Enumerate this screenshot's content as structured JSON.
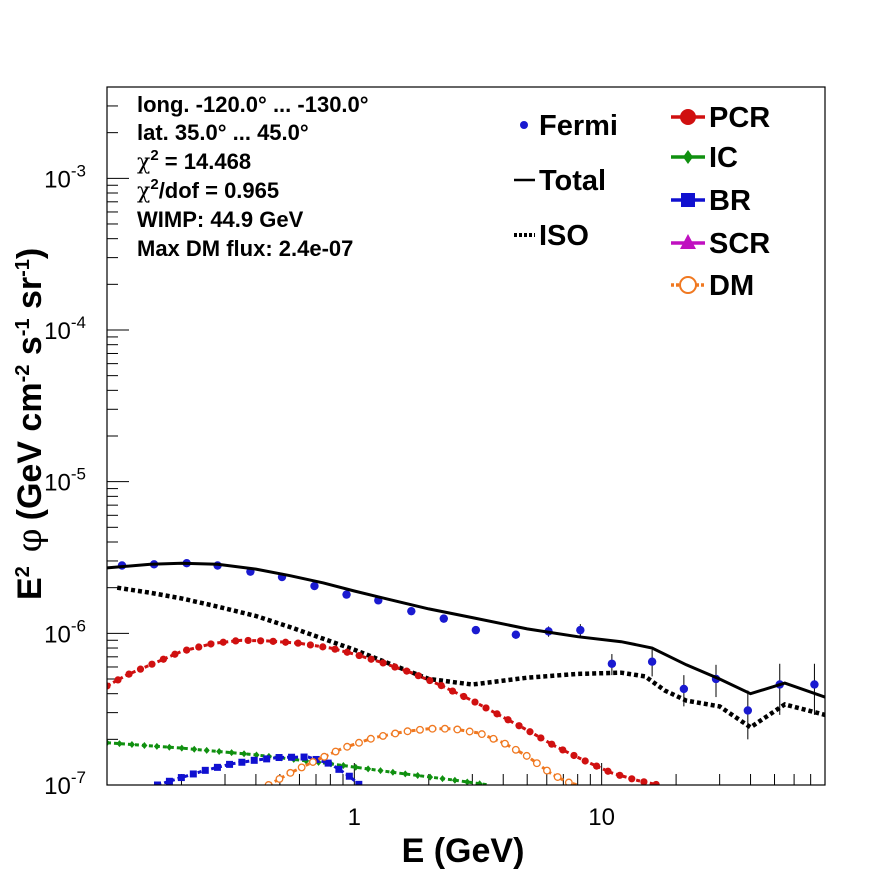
{
  "chart_data": {
    "type": "scatter",
    "xlabel": "E (GeV)",
    "ylabel": "E^2 φ (GeV cm^-2 s^-1 sr^-1)",
    "ylabel_parts": {
      "E": "E",
      "sup2": "2",
      "phi": "φ",
      "open": "(GeV cm",
      "m2": "-2",
      "s": " s",
      "m1a": "-1",
      "sr": " sr",
      "m1b": "-1",
      "close": ")"
    },
    "x_scale": "log",
    "y_scale": "log",
    "xlim": [
      0.1,
      80
    ],
    "ylim": [
      1e-07,
      0.004
    ],
    "x_tick_labels": [
      {
        "value": 1,
        "label": "1"
      },
      {
        "value": 10,
        "label": "10"
      }
    ],
    "y_tick_labels": [
      {
        "value": 1e-07,
        "base": "10",
        "exp": "-7"
      },
      {
        "value": 1e-06,
        "base": "10",
        "exp": "-6"
      },
      {
        "value": 1e-05,
        "base": "10",
        "exp": "-5"
      },
      {
        "value": 0.0001,
        "base": "10",
        "exp": "-4"
      },
      {
        "value": 0.001,
        "base": "10",
        "exp": "-3"
      }
    ],
    "annotations": {
      "longitude": "long. -120.0° ... -130.0°",
      "latitude": "lat. 35.0° ... 45.0°",
      "chi2_symbol": "χ",
      "chi2_value": " = 14.468",
      "chi2dof_value": "/dof = 0.965",
      "wimp": "WIMP: 44.9 GeV",
      "max_dm_flux": "Max DM flux: 2.4e-07"
    },
    "legend": {
      "placement": "top-right",
      "entries": [
        "Fermi",
        "Total",
        "ISO",
        "PCR",
        "IC",
        "BR",
        "SCR",
        "DM"
      ]
    },
    "colors": {
      "Fermi": "#1a1ad0",
      "Total": "#000000",
      "ISO": "#000000",
      "PCR": "#d01010",
      "IC": "#109010",
      "BR": "#1010d0",
      "SCR": "#c010c0",
      "DM": "#f07820"
    },
    "series": [
      {
        "name": "Fermi",
        "kind": "points_with_errors",
        "x": [
          0.115,
          0.155,
          0.21,
          0.28,
          0.38,
          0.51,
          0.69,
          0.93,
          1.25,
          1.7,
          2.3,
          3.1,
          4.5,
          6.1,
          8.2,
          11.0,
          16.0,
          21.5,
          29.0,
          39.0,
          52.5,
          72.5
        ],
        "y": [
          2.8e-06,
          2.85e-06,
          2.9e-06,
          2.8e-06,
          2.55e-06,
          2.35e-06,
          2.05e-06,
          1.8e-06,
          1.65e-06,
          1.4e-06,
          1.25e-06,
          1.05e-06,
          9.8e-07,
          1.03e-06,
          1.05e-06,
          6.3e-07,
          6.5e-07,
          4.3e-07,
          5e-07,
          3.1e-07,
          4.6e-07,
          4.6e-07
        ],
        "y_err": [
          1e-07,
          1e-07,
          1e-07,
          1e-07,
          1e-07,
          9e-08,
          8e-08,
          7e-08,
          6e-08,
          6e-08,
          5e-08,
          5e-08,
          6e-08,
          8e-08,
          1e-07,
          1e-07,
          1.3e-07,
          1e-07,
          1.2e-07,
          1.1e-07,
          1.7e-07,
          1.7e-07
        ]
      },
      {
        "name": "Total",
        "kind": "line",
        "x": [
          0.1,
          0.15,
          0.2,
          0.28,
          0.4,
          0.55,
          0.75,
          1.0,
          1.5,
          2.0,
          3.0,
          5.0,
          8.0,
          12.0,
          16.0,
          22.0,
          30.0,
          40.0,
          55.0,
          80.0
        ],
        "y": [
          2.7e-06,
          2.85e-06,
          2.9e-06,
          2.85e-06,
          2.65e-06,
          2.4e-06,
          2.15e-06,
          1.9e-06,
          1.62e-06,
          1.45e-06,
          1.27e-06,
          1.07e-06,
          9.5e-07,
          8.8e-07,
          8e-07,
          6.2e-07,
          5e-07,
          4e-07,
          4.7e-07,
          3.8e-07
        ]
      },
      {
        "name": "ISO",
        "kind": "dotted_line",
        "x": [
          0.11,
          0.15,
          0.2,
          0.28,
          0.4,
          0.55,
          0.75,
          1.0,
          1.5,
          2.0,
          3.0,
          5.0,
          8.0,
          12.0,
          15.0,
          18.0,
          22.0,
          30.0,
          40.0,
          55.0,
          80.0
        ],
        "y": [
          2e-06,
          1.85e-06,
          1.7e-06,
          1.5e-06,
          1.3e-06,
          1.1e-06,
          9.2e-07,
          7.8e-07,
          6e-07,
          5e-07,
          4.6e-07,
          5.1e-07,
          5.4e-07,
          5.5e-07,
          5.2e-07,
          4.2e-07,
          3.6e-07,
          3.3e-07,
          2.4e-07,
          3.4e-07,
          2.9e-07
        ]
      },
      {
        "name": "PCR",
        "kind": "marker_line",
        "x": [
          0.1,
          0.12,
          0.15,
          0.2,
          0.27,
          0.35,
          0.45,
          0.6,
          0.8,
          1.0,
          1.3,
          1.7,
          2.2,
          3.0,
          4.0,
          5.0,
          6.5,
          8.5,
          11.0,
          14.0,
          17.0
        ],
        "y": [
          4.5e-07,
          5.3e-07,
          6.2e-07,
          7.6e-07,
          8.6e-07,
          9e-07,
          8.9e-07,
          8.6e-07,
          8e-07,
          7.3e-07,
          6.4e-07,
          5.5e-07,
          4.6e-07,
          3.6e-07,
          2.8e-07,
          2.3e-07,
          1.8e-07,
          1.45e-07,
          1.2e-07,
          1.07e-07,
          1e-07
        ]
      },
      {
        "name": "IC",
        "kind": "marker_line",
        "x": [
          0.1,
          0.2,
          0.4,
          0.8,
          1.5,
          2.5,
          3.5
        ],
        "y": [
          1.9e-07,
          1.75e-07,
          1.58e-07,
          1.38e-07,
          1.2e-07,
          1.08e-07,
          1e-07
        ]
      },
      {
        "name": "BR",
        "kind": "marker_line",
        "x": [
          0.16,
          0.2,
          0.25,
          0.32,
          0.4,
          0.5,
          0.65,
          0.8,
          0.95,
          1.05
        ],
        "y": [
          1e-07,
          1.12e-07,
          1.25e-07,
          1.38e-07,
          1.46e-07,
          1.52e-07,
          1.53e-07,
          1.38e-07,
          1.15e-07,
          1e-07
        ]
      },
      {
        "name": "SCR",
        "kind": "marker_line",
        "x": [],
        "y": []
      },
      {
        "name": "DM",
        "kind": "marker_line",
        "x": [
          0.45,
          0.55,
          0.7,
          0.9,
          1.2,
          1.6,
          2.0,
          2.5,
          3.2,
          4.0,
          5.0,
          6.2,
          7.2,
          8.0
        ],
        "y": [
          1e-07,
          1.2e-07,
          1.45e-07,
          1.75e-07,
          2.05e-07,
          2.25e-07,
          2.35e-07,
          2.35e-07,
          2.2e-07,
          1.9e-07,
          1.55e-07,
          1.2e-07,
          1.05e-07,
          1e-07
        ]
      }
    ]
  }
}
